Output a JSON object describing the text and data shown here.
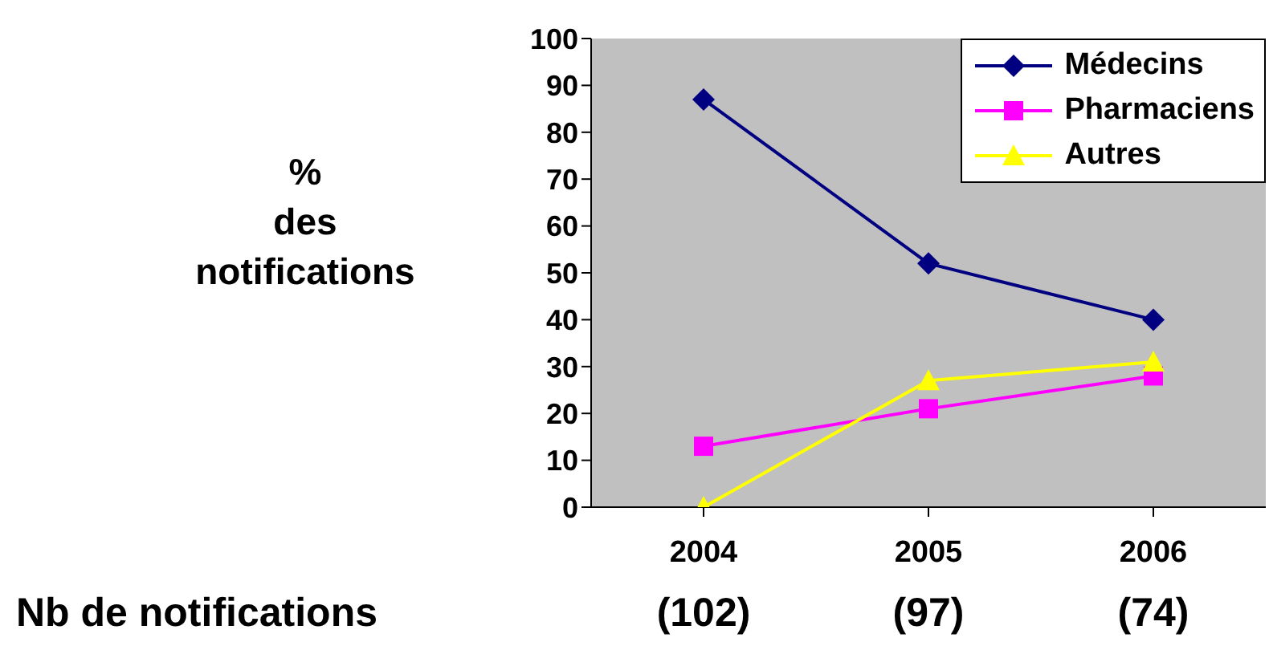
{
  "chart_data": {
    "type": "line",
    "ylabel": "% des notifications",
    "categories": [
      "2004",
      "2005",
      "2006"
    ],
    "series": [
      {
        "name": "Médecins",
        "color": "#000080",
        "marker": "diamond",
        "values": [
          87,
          52,
          40
        ]
      },
      {
        "name": "Pharmaciens",
        "color": "#ff00ff",
        "marker": "square",
        "values": [
          13,
          21,
          28
        ]
      },
      {
        "name": "Autres",
        "color": "#ffff00",
        "marker": "triangle",
        "values": [
          0,
          27,
          31
        ]
      }
    ],
    "ylim": [
      0,
      100
    ],
    "yticks": [
      0,
      10,
      20,
      30,
      40,
      50,
      60,
      70,
      80,
      90,
      100
    ],
    "grid": false,
    "legend": "top right",
    "annotations": [
      "Nb de notifications",
      "(102)",
      "(97)",
      "(74)"
    ]
  }
}
